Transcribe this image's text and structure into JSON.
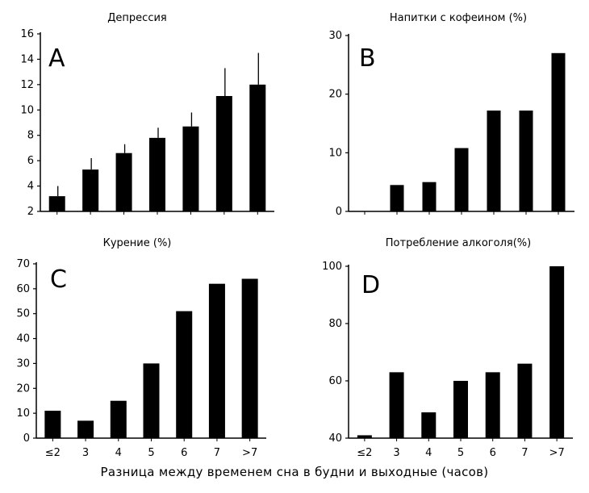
{
  "caption": "Разница между временем сна в будни и выходные (часов)",
  "chart_data": [
    {
      "type": "bar",
      "letter": "A",
      "title": "Депрессия",
      "categories": [
        "≤2",
        "3",
        "4",
        "5",
        "6",
        "7",
        ">7"
      ],
      "values": [
        3.2,
        5.3,
        6.6,
        7.8,
        8.7,
        11.1,
        12.0
      ],
      "errors": [
        0.8,
        0.9,
        0.7,
        0.8,
        1.1,
        2.2,
        2.5
      ],
      "ylim": [
        2,
        16
      ],
      "yticks": [
        2,
        4,
        6,
        8,
        10,
        12,
        14,
        16
      ],
      "show_xticks": false
    },
    {
      "type": "bar",
      "letter": "B",
      "title": "Напитки с кофеином (%)",
      "categories": [
        "≤2",
        "3",
        "4",
        "5",
        "6",
        "7",
        ">7"
      ],
      "values": [
        0,
        4.5,
        5.0,
        10.8,
        17.2,
        17.2,
        27.0
      ],
      "ylim": [
        0,
        30
      ],
      "yticks": [
        0,
        10,
        20,
        30
      ],
      "show_xticks": false
    },
    {
      "type": "bar",
      "letter": "C",
      "title": "Курение (%)",
      "categories": [
        "≤2",
        "3",
        "4",
        "5",
        "6",
        "7",
        ">7"
      ],
      "values": [
        11,
        7,
        15,
        30,
        51,
        62,
        64
      ],
      "ylim": [
        0,
        70
      ],
      "yticks": [
        0,
        10,
        20,
        30,
        40,
        50,
        60,
        70
      ],
      "show_xticks": true
    },
    {
      "type": "bar",
      "letter": "D",
      "title": "Потребление алкоголя(%)",
      "categories": [
        "≤2",
        "3",
        "4",
        "5",
        "6",
        "7",
        ">7"
      ],
      "values": [
        41,
        63,
        49,
        60,
        63,
        66,
        100
      ],
      "ylim": [
        40,
        100
      ],
      "yticks": [
        40,
        60,
        80,
        100
      ],
      "show_xticks": true
    }
  ]
}
